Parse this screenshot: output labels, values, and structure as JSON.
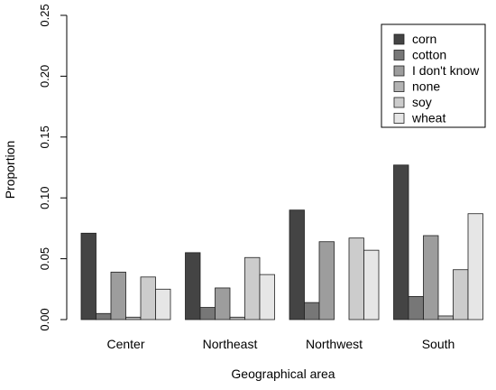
{
  "chart_data": {
    "type": "bar",
    "categories": [
      "Center",
      "Northeast",
      "Northwest",
      "South"
    ],
    "series": [
      {
        "name": "corn",
        "color": "#444444",
        "values": [
          0.071,
          0.055,
          0.09,
          0.127
        ]
      },
      {
        "name": "cotton",
        "color": "#777777",
        "values": [
          0.005,
          0.01,
          0.014,
          0.019
        ]
      },
      {
        "name": "I don't know",
        "color": "#9d9d9d",
        "values": [
          0.039,
          0.026,
          0.064,
          0.069
        ]
      },
      {
        "name": "none",
        "color": "#b3b3b3",
        "values": [
          0.002,
          0.002,
          0.0,
          0.003
        ]
      },
      {
        "name": "soy",
        "color": "#cccccc",
        "values": [
          0.035,
          0.051,
          0.067,
          0.041
        ]
      },
      {
        "name": "wheat",
        "color": "#e6e6e6",
        "values": [
          0.025,
          0.037,
          0.057,
          0.087
        ]
      }
    ],
    "xlabel": "Geographical area",
    "ylabel": "Proportion",
    "ylim": [
      0,
      0.25
    ],
    "yticks": [
      "0.00",
      "0.05",
      "0.10",
      "0.15",
      "0.20",
      "0.25"
    ],
    "legend_position": "top-right",
    "grid": false
  }
}
